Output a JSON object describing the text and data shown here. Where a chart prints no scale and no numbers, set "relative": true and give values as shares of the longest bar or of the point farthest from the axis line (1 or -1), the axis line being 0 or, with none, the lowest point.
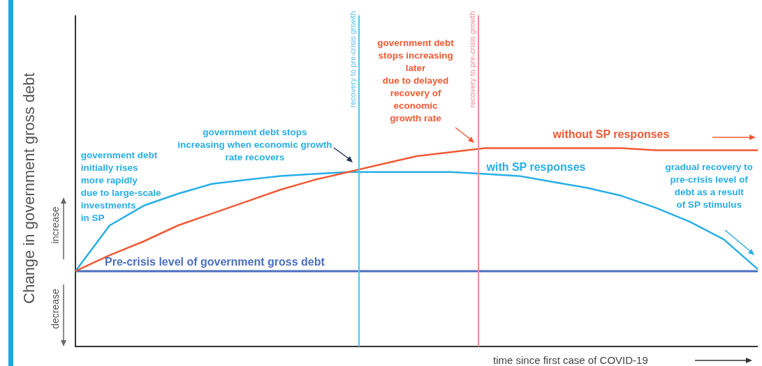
{
  "chart_data": {
    "type": "line",
    "relative": true,
    "xlabel": "time since first case of COVID-19",
    "ylabel": "Change in government gross debt",
    "categories": [
      null,
      null,
      null,
      null,
      null,
      null,
      null,
      null,
      null,
      null,
      null,
      null,
      null,
      null,
      null,
      null,
      null,
      null,
      null,
      null,
      null
    ],
    "marker": "none",
    "line_style": "solid",
    "series": [
      {
        "name": "without SP responses",
        "color": "#f05a35",
        "values": [
          0.38,
          0.46,
          0.53,
          0.61,
          0.67,
          0.73,
          0.79,
          0.84,
          0.88,
          0.92,
          0.96,
          0.98,
          1.0,
          1.0,
          1.0,
          1.0,
          1.0,
          0.99,
          0.99,
          0.99,
          0.99
        ]
      },
      {
        "name": "with SP responses",
        "color": "#29aee6",
        "values": [
          0.38,
          0.61,
          0.71,
          0.77,
          0.82,
          0.84,
          0.86,
          0.87,
          0.88,
          0.88,
          0.88,
          0.88,
          0.87,
          0.86,
          0.83,
          0.8,
          0.76,
          0.7,
          0.63,
          0.54,
          0.39
        ]
      }
    ],
    "ref_lines": [
      {
        "axis": "y",
        "value": 0.38,
        "label": "Pre-crisis level of government gross debt",
        "color": "#4a6fbf"
      }
    ],
    "annotations": [
      "increase",
      "decrease",
      "government debt\ninitially rises\nmore rapidly\ndue to large-scale\ninvestments\nin SP",
      "government debt stops\nincreasing when economic growth\nrate recovers",
      "government debt\nstops increasing\nlater\ndue to delayed\nrecovery of\neconomic\ngrowth rate",
      "gradual recovery to\npre-crisis level of\ndebt as a result\nof SP stimulus",
      "recovery to pre-crisis growth",
      "recovery to pre-crisis growth"
    ]
  }
}
